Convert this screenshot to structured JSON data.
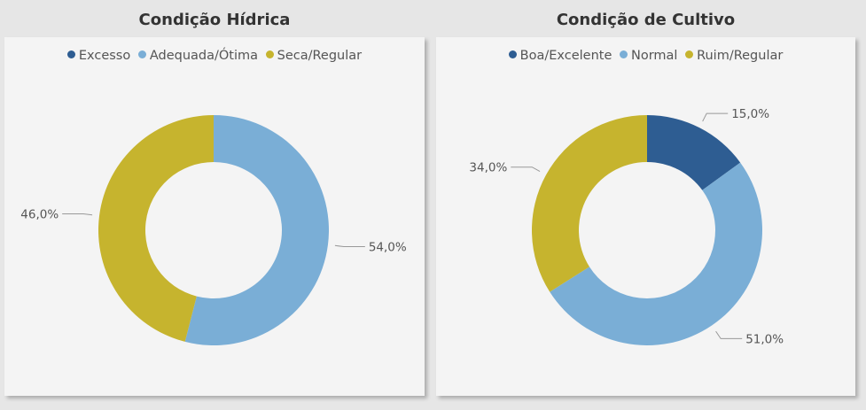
{
  "chart_data": [
    {
      "type": "pie",
      "variant": "donut",
      "title": "Condição Hídrica",
      "legend_position": "top",
      "categories": [
        "Excesso",
        "Adequada/Ótima",
        "Seca/Regular"
      ],
      "values": [
        0,
        54.0,
        46.0
      ],
      "value_labels": [
        "",
        "54,0%",
        "46,0%"
      ],
      "colors": [
        "#2e5d92",
        "#7aaed6",
        "#c6b42e"
      ]
    },
    {
      "type": "pie",
      "variant": "donut",
      "title": "Condição de Cultivo",
      "legend_position": "top",
      "categories": [
        "Boa/Excelente",
        "Normal",
        "Ruim/Regular"
      ],
      "values": [
        15.0,
        51.0,
        34.0
      ],
      "value_labels": [
        "15,0%",
        "51,0%",
        "34,0%"
      ],
      "colors": [
        "#2e5d92",
        "#7aaed6",
        "#c6b42e"
      ]
    }
  ]
}
